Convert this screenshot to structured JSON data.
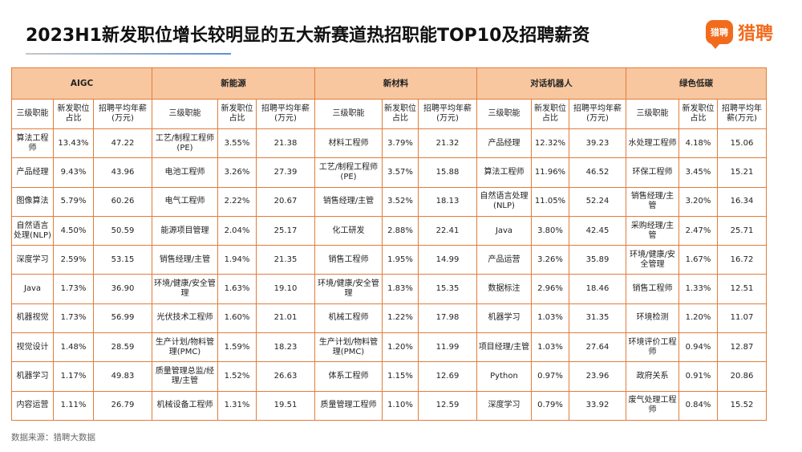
{
  "title": "2023H1新发职位增长较明显的五大新赛道热招职能TOP10及招聘薪资",
  "logo": {
    "badge": "猎聘",
    "text": "猎聘",
    "color": "#f26b1d"
  },
  "colors": {
    "header_bg": "#f8c79f",
    "border": "#e07d3c",
    "accent": "#f26b1d"
  },
  "sub_headers": [
    "三级职能",
    "新发职位占比",
    "招聘平均年薪(万元)"
  ],
  "categories": [
    {
      "name": "AIGC",
      "rows": [
        [
          "算法工程师",
          "13.43%",
          "47.22"
        ],
        [
          "产品经理",
          "9.43%",
          "43.96"
        ],
        [
          "图像算法",
          "5.79%",
          "60.26"
        ],
        [
          "自然语言处理(NLP)",
          "4.50%",
          "50.59"
        ],
        [
          "深度学习",
          "2.59%",
          "53.15"
        ],
        [
          "Java",
          "1.73%",
          "36.90"
        ],
        [
          "机器视觉",
          "1.73%",
          "56.99"
        ],
        [
          "视觉设计",
          "1.48%",
          "28.59"
        ],
        [
          "机器学习",
          "1.17%",
          "49.83"
        ],
        [
          "内容运营",
          "1.11%",
          "26.79"
        ]
      ]
    },
    {
      "name": "新能源",
      "rows": [
        [
          "工艺/制程工程师(PE)",
          "3.55%",
          "21.38"
        ],
        [
          "电池工程师",
          "3.26%",
          "27.39"
        ],
        [
          "电气工程师",
          "2.22%",
          "20.67"
        ],
        [
          "能源项目管理",
          "2.04%",
          "25.17"
        ],
        [
          "销售经理/主管",
          "1.94%",
          "21.35"
        ],
        [
          "环境/健康/安全管理",
          "1.63%",
          "19.10"
        ],
        [
          "光伏技术工程师",
          "1.60%",
          "21.01"
        ],
        [
          "生产计划/物料管理(PMC)",
          "1.59%",
          "18.23"
        ],
        [
          "质量管理总监/经理/主管",
          "1.52%",
          "26.63"
        ],
        [
          "机械设备工程师",
          "1.31%",
          "19.51"
        ]
      ]
    },
    {
      "name": "新材料",
      "rows": [
        [
          "材料工程师",
          "3.79%",
          "21.32"
        ],
        [
          "工艺/制程工程师(PE)",
          "3.57%",
          "15.88"
        ],
        [
          "销售经理/主管",
          "3.52%",
          "18.13"
        ],
        [
          "化工研发",
          "2.88%",
          "22.41"
        ],
        [
          "销售工程师",
          "1.95%",
          "14.99"
        ],
        [
          "环境/健康/安全管理",
          "1.83%",
          "15.35"
        ],
        [
          "机械工程师",
          "1.22%",
          "17.98"
        ],
        [
          "生产计划/物料管理(PMC)",
          "1.20%",
          "11.99"
        ],
        [
          "体系工程师",
          "1.15%",
          "12.69"
        ],
        [
          "质量管理工程师",
          "1.10%",
          "12.59"
        ]
      ]
    },
    {
      "name": "对话机器人",
      "rows": [
        [
          "产品经理",
          "12.32%",
          "39.23"
        ],
        [
          "算法工程师",
          "11.96%",
          "46.52"
        ],
        [
          "自然语言处理(NLP)",
          "11.05%",
          "52.24"
        ],
        [
          "Java",
          "3.80%",
          "42.45"
        ],
        [
          "产品运营",
          "3.26%",
          "35.89"
        ],
        [
          "数据标注",
          "2.96%",
          "18.46"
        ],
        [
          "机器学习",
          "1.03%",
          "31.35"
        ],
        [
          "项目经理/主管",
          "1.03%",
          "27.64"
        ],
        [
          "Python",
          "0.97%",
          "23.96"
        ],
        [
          "深度学习",
          "0.79%",
          "33.92"
        ]
      ]
    },
    {
      "name": "绿色低碳",
      "rows": [
        [
          "水处理工程师",
          "4.18%",
          "15.06"
        ],
        [
          "环保工程师",
          "3.45%",
          "15.21"
        ],
        [
          "销售经理/主管",
          "3.20%",
          "16.34"
        ],
        [
          "采购经理/主管",
          "2.47%",
          "25.71"
        ],
        [
          "环境/健康/安全管理",
          "1.67%",
          "16.72"
        ],
        [
          "销售工程师",
          "1.33%",
          "12.51"
        ],
        [
          "环境检测",
          "1.20%",
          "11.07"
        ],
        [
          "环境评价工程师",
          "0.94%",
          "12.87"
        ],
        [
          "政府关系",
          "0.91%",
          "20.86"
        ],
        [
          "废气处理工程师",
          "0.84%",
          "15.52"
        ]
      ]
    }
  ],
  "source": "数据来源：猎聘大数据"
}
